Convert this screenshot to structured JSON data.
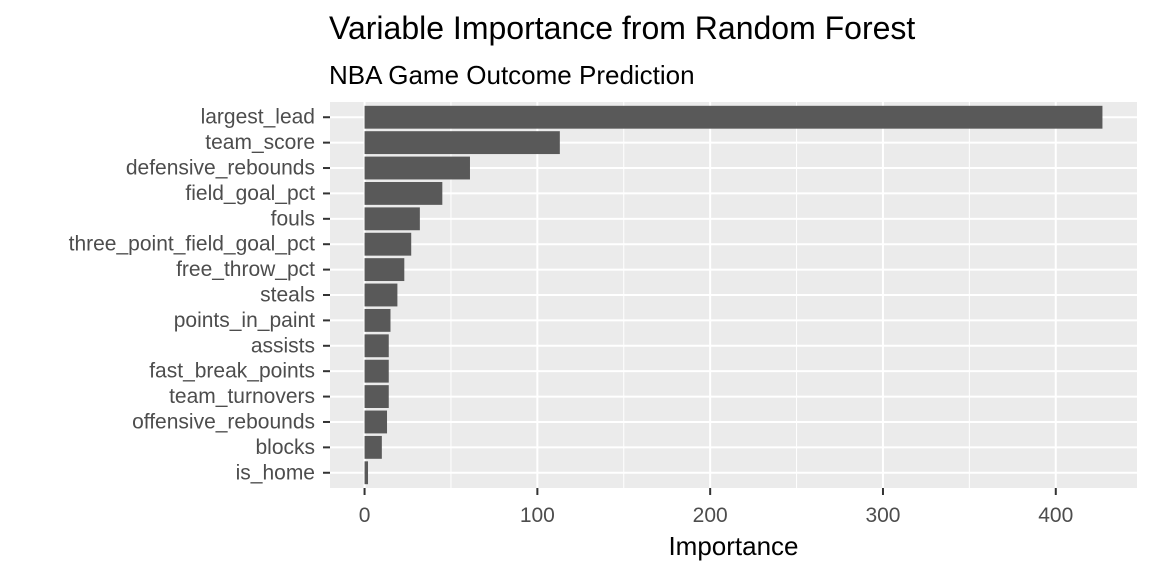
{
  "chart_data": {
    "type": "bar",
    "orientation": "horizontal",
    "title": "Variable Importance from Random Forest",
    "subtitle": "NBA Game Outcome Prediction",
    "xlabel": "Importance",
    "ylabel": "",
    "categories": [
      "largest_lead",
      "team_score",
      "defensive_rebounds",
      "field_goal_pct",
      "fouls",
      "three_point_field_goal_pct",
      "free_throw_pct",
      "steals",
      "points_in_paint",
      "assists",
      "fast_break_points",
      "team_turnovers",
      "offensive_rebounds",
      "blocks",
      "is_home"
    ],
    "values": [
      427,
      113,
      61,
      45,
      32,
      27,
      23,
      19,
      15,
      14,
      14,
      14,
      13,
      10,
      2
    ],
    "xlim": [
      -20,
      447
    ],
    "xticks": [
      0,
      100,
      200,
      300,
      400
    ],
    "grid": true,
    "legend": "none",
    "bar_color": "#595959",
    "panel_color": "#ebebeb",
    "grid_color": "#ffffff"
  }
}
